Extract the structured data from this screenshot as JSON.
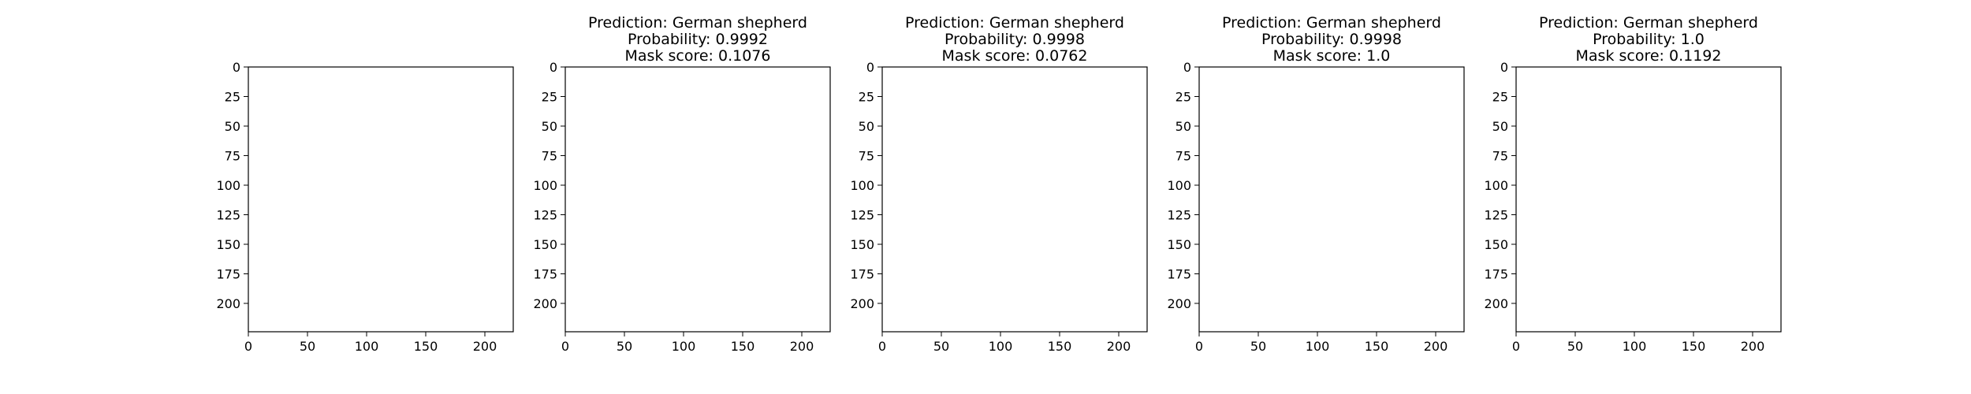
{
  "figure": {
    "background": "#ffffff",
    "palette": {
      "background_segment": "#7f7fbf",
      "dog_segment": "#bf7f7f",
      "red_segment": "#f88080",
      "blue_segment": "#8080f8",
      "yellow_green_segment": "#d8ff9c",
      "cyan_segment": "#80f8f0",
      "photo_dark_dog": "#1d1a1a",
      "photo_floor": "#8f8477",
      "photo_ball": "#d46f2a",
      "photo_wall": "#c9bfae"
    }
  },
  "chart_data": [
    {
      "type": "image",
      "panel": "input-photo",
      "title_lines": [],
      "xticks": [
        0,
        50,
        100,
        150,
        200
      ],
      "yticks": [
        0,
        25,
        50,
        75,
        100,
        125,
        150,
        175,
        200
      ],
      "xlim": [
        0,
        224
      ],
      "ylim": [
        224,
        0
      ]
    },
    {
      "type": "image",
      "panel": "mask-1",
      "title_lines": [
        "Prediction: German shepherd",
        "Probability: 0.9992",
        "Mask score: 0.1076"
      ],
      "prediction": "German shepherd",
      "probability": 0.9992,
      "mask_score": 0.1076,
      "segments": [
        "background_segment",
        "dog_segment"
      ],
      "xticks": [
        0,
        50,
        100,
        150,
        200
      ],
      "yticks": [
        0,
        25,
        50,
        75,
        100,
        125,
        150,
        175,
        200
      ],
      "xlim": [
        0,
        224
      ],
      "ylim": [
        224,
        0
      ]
    },
    {
      "type": "image",
      "panel": "mask-2",
      "title_lines": [
        "Prediction: German shepherd",
        "Probability: 0.9998",
        "Mask score: 0.0762"
      ],
      "prediction": "German shepherd",
      "probability": 0.9998,
      "mask_score": 0.0762,
      "segments": [
        "background_segment",
        "dog_segment",
        "red_segment",
        "blue_segment"
      ],
      "xticks": [
        0,
        50,
        100,
        150,
        200
      ],
      "yticks": [
        0,
        25,
        50,
        75,
        100,
        125,
        150,
        175,
        200
      ],
      "xlim": [
        0,
        224
      ],
      "ylim": [
        224,
        0
      ]
    },
    {
      "type": "image",
      "panel": "mask-3",
      "title_lines": [
        "Prediction: German shepherd",
        "Probability: 0.9998",
        "Mask score: 1.0"
      ],
      "prediction": "German shepherd",
      "probability": 0.9998,
      "mask_score": 1.0,
      "segments": [
        "background_segment",
        "dog_segment",
        "yellow_green_segment",
        "cyan_segment"
      ],
      "xticks": [
        0,
        50,
        100,
        150,
        200
      ],
      "yticks": [
        0,
        25,
        50,
        75,
        100,
        125,
        150,
        175,
        200
      ],
      "xlim": [
        0,
        224
      ],
      "ylim": [
        224,
        0
      ]
    },
    {
      "type": "image",
      "panel": "mask-4",
      "title_lines": [
        "Prediction: German shepherd",
        "Probability: 1.0",
        "Mask score: 0.1192"
      ],
      "prediction": "German shepherd",
      "probability": 1.0,
      "mask_score": 0.1192,
      "segments": [
        "background_segment",
        "dog_segment"
      ],
      "xticks": [
        0,
        50,
        100,
        150,
        200
      ],
      "yticks": [
        0,
        25,
        50,
        75,
        100,
        125,
        150,
        175,
        200
      ],
      "xlim": [
        0,
        224
      ],
      "ylim": [
        224,
        0
      ]
    }
  ]
}
